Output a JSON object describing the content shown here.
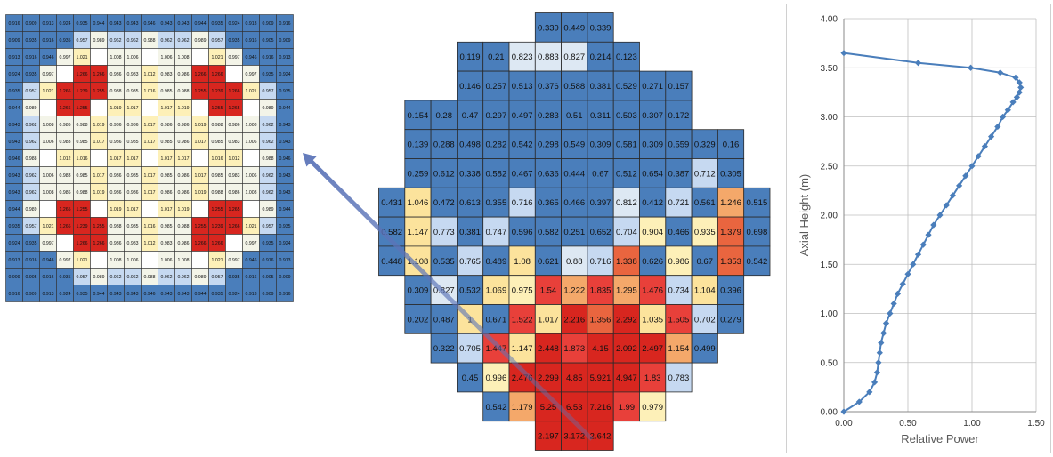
{
  "assembly_map": {
    "rows": [
      [
        "0.916",
        "0.909",
        "0.913",
        "0.924",
        "0.935",
        "0.944",
        "0.943",
        "0.943",
        "0.946",
        "0.943",
        "0.943",
        "0.944",
        "0.935",
        "0.924",
        "0.913",
        "0.909",
        "0.916"
      ],
      [
        "0.909",
        "0.935",
        "0.916",
        "0.935",
        "0.957",
        "0.989",
        "0.962",
        "0.962",
        "0.988",
        "0.962",
        "0.962",
        "0.989",
        "0.957",
        "0.935",
        "0.916",
        "0.905",
        "0.909"
      ],
      [
        "0.913",
        "0.916",
        "0.946",
        "0.997",
        "1.021",
        "",
        "1.008",
        "1.006",
        "",
        "1.006",
        "1.008",
        "",
        "1.021",
        "0.997",
        "0.946",
        "0.916",
        "0.913"
      ],
      [
        "0.924",
        "0.935",
        "0.997",
        "",
        "1.266",
        "1.266",
        "0.986",
        "0.983",
        "1.012",
        "0.983",
        "0.986",
        "1.266",
        "1.266",
        "",
        "0.997",
        "0.935",
        "0.924"
      ],
      [
        "0.935",
        "0.957",
        "1.021",
        "1.266",
        "1.239",
        "1.255",
        "0.988",
        "0.985",
        "1.016",
        "0.985",
        "0.988",
        "1.255",
        "1.239",
        "1.266",
        "1.021",
        "0.957",
        "0.935"
      ],
      [
        "0.944",
        "0.989",
        "",
        "1.266",
        "1.255",
        "",
        "1.019",
        "1.017",
        "",
        "1.017",
        "1.019",
        "",
        "1.255",
        "1.265",
        "",
        "0.989",
        "0.944"
      ],
      [
        "0.943",
        "0.962",
        "1.008",
        "0.986",
        "0.988",
        "1.019",
        "0.986",
        "0.986",
        "1.017",
        "0.986",
        "0.986",
        "1.019",
        "0.988",
        "0.986",
        "1.008",
        "0.962",
        "0.943"
      ],
      [
        "0.943",
        "0.962",
        "1.006",
        "0.983",
        "0.985",
        "1.017",
        "0.986",
        "0.985",
        "1.017",
        "0.985",
        "0.986",
        "1.017",
        "0.985",
        "0.983",
        "1.006",
        "0.962",
        "0.943"
      ],
      [
        "0.946",
        "0.988",
        "",
        "1.012",
        "1.016",
        "",
        "1.017",
        "1.017",
        "",
        "1.017",
        "1.017",
        "",
        "1.016",
        "1.012",
        "",
        "0.988",
        "0.946"
      ],
      [
        "0.943",
        "0.962",
        "1.006",
        "0.983",
        "0.985",
        "1.017",
        "0.986",
        "0.985",
        "1.017",
        "0.985",
        "0.986",
        "1.017",
        "0.985",
        "0.983",
        "1.006",
        "0.962",
        "0.943"
      ],
      [
        "0.943",
        "0.962",
        "1.008",
        "0.986",
        "0.988",
        "1.019",
        "0.986",
        "0.986",
        "1.017",
        "0.986",
        "0.986",
        "1.019",
        "0.988",
        "0.986",
        "1.008",
        "0.962",
        "0.943"
      ],
      [
        "0.944",
        "0.989",
        "",
        "1.265",
        "1.255",
        "",
        "1.019",
        "1.017",
        "",
        "1.017",
        "1.019",
        "",
        "1.255",
        "1.265",
        "",
        "0.989",
        "0.944"
      ],
      [
        "0.935",
        "0.957",
        "1.021",
        "1.266",
        "1.239",
        "1.255",
        "0.988",
        "0.985",
        "1.016",
        "0.985",
        "0.988",
        "1.255",
        "1.239",
        "1.266",
        "1.021",
        "0.957",
        "0.935"
      ],
      [
        "0.924",
        "0.935",
        "0.997",
        "",
        "1.266",
        "1.266",
        "0.986",
        "0.983",
        "1.012",
        "0.983",
        "0.986",
        "1.266",
        "1.266",
        "",
        "0.997",
        "0.935",
        "0.924"
      ],
      [
        "0.913",
        "0.916",
        "0.946",
        "0.997",
        "1.021",
        "",
        "1.008",
        "1.006",
        "",
        "1.006",
        "1.008",
        "",
        "1.021",
        "0.997",
        "0.946",
        "0.916",
        "0.913"
      ],
      [
        "0.909",
        "0.905",
        "0.916",
        "0.935",
        "0.957",
        "0.989",
        "0.962",
        "0.962",
        "0.988",
        "0.962",
        "0.962",
        "0.989",
        "0.957",
        "0.935",
        "0.916",
        "0.905",
        "0.909"
      ],
      [
        "0.916",
        "0.909",
        "0.913",
        "0.924",
        "0.935",
        "0.944",
        "0.943",
        "0.943",
        "0.946",
        "0.943",
        "0.943",
        "0.944",
        "0.935",
        "0.924",
        "0.913",
        "0.909",
        "0.916"
      ]
    ]
  },
  "core_map": {
    "rows": [
      {
        "start": 6,
        "values": [
          "0.339",
          "0.449",
          "0.339"
        ]
      },
      {
        "start": 3,
        "values": [
          "0.119",
          "0.21",
          "0.823",
          "0.883",
          "0.827",
          "0.214",
          "0.123"
        ]
      },
      {
        "start": 3,
        "values": [
          "0.146",
          "0.257",
          "0.513",
          "0.376",
          "0.588",
          "0.381",
          "0.529",
          "0.271",
          "0.157"
        ]
      },
      {
        "start": 1,
        "values": [
          "0.154",
          "0.28",
          "0.47",
          "0.297",
          "0.497",
          "0.283",
          "0.51",
          "0.311",
          "0.503",
          "0.307",
          "0.172"
        ]
      },
      {
        "start": 1,
        "values": [
          "0.139",
          "0.288",
          "0.498",
          "0.282",
          "0.542",
          "0.298",
          "0.549",
          "0.309",
          "0.581",
          "0.309",
          "0.559",
          "0.329",
          "0.16"
        ]
      },
      {
        "start": 1,
        "values": [
          "0.259",
          "0.612",
          "0.338",
          "0.582",
          "0.467",
          "0.636",
          "0.444",
          "0.67",
          "0.512",
          "0.654",
          "0.387",
          "0.712",
          "0.305"
        ]
      },
      {
        "start": 0,
        "values": [
          "0.431",
          "1.046",
          "0.472",
          "0.613",
          "0.355",
          "0.716",
          "0.365",
          "0.466",
          "0.397",
          "0.812",
          "0.412",
          "0.721",
          "0.561",
          "1.246",
          "0.515"
        ]
      },
      {
        "start": 0,
        "values": [
          "0.582",
          "1.147",
          "0.773",
          "0.381",
          "0.747",
          "0.596",
          "0.582",
          "0.251",
          "0.652",
          "0.704",
          "0.904",
          "0.466",
          "0.935",
          "1.379",
          "0.698"
        ]
      },
      {
        "start": 0,
        "values": [
          "0.448",
          "1.108",
          "0.535",
          "0.765",
          "0.489",
          "1.08",
          "0.621",
          "0.88",
          "0.716",
          "1.338",
          "0.626",
          "0.986",
          "0.67",
          "1.353",
          "0.542"
        ]
      },
      {
        "start": 1,
        "values": [
          "0.309",
          "0.827",
          "0.532",
          "1.069",
          "0.975",
          "1.54",
          "1.222",
          "1.835",
          "1.295",
          "1.476",
          "0.734",
          "1.104",
          "0.396"
        ]
      },
      {
        "start": 1,
        "values": [
          "0.202",
          "0.487",
          "1",
          "0.671",
          "1.522",
          "1.017",
          "2.216",
          "1.356",
          "2.292",
          "1.035",
          "1.505",
          "0.702",
          "0.279"
        ]
      },
      {
        "start": 2,
        "values": [
          "0.322",
          "0.705",
          "1.447",
          "1.147",
          "2.448",
          "1.873",
          "4.15",
          "2.092",
          "2.497",
          "1.154",
          "0.499"
        ]
      },
      {
        "start": 3,
        "values": [
          "0.45",
          "0.996",
          "2.476",
          "2.299",
          "4.85",
          "5.921",
          "4.947",
          "1.83",
          "0.783"
        ]
      },
      {
        "start": 4,
        "values": [
          "0.542",
          "1.179",
          "5.25",
          "6.53",
          "7.216",
          "1.99",
          "0.979"
        ]
      },
      {
        "start": 6,
        "values": [
          "2.197",
          "3.172",
          "2.642"
        ]
      }
    ]
  },
  "chart_data": {
    "type": "line",
    "xlabel": "Relative Power",
    "ylabel": "Axial Height (m)",
    "xlim": [
      0,
      1.5
    ],
    "ylim": [
      0,
      4.0
    ],
    "xticks": [
      "0.00",
      "0.50",
      "1.00",
      "1.50"
    ],
    "yticks": [
      "0.00",
      "0.50",
      "1.00",
      "1.50",
      "2.00",
      "2.50",
      "3.00",
      "3.50",
      "4.00"
    ],
    "grid": true,
    "series": [
      {
        "color": "#4a7ebb",
        "x": [
          0.0,
          0.12,
          0.2,
          0.24,
          0.26,
          0.27,
          0.28,
          0.29,
          0.31,
          0.33,
          0.36,
          0.39,
          0.42,
          0.46,
          0.5,
          0.54,
          0.58,
          0.62,
          0.66,
          0.7,
          0.75,
          0.8,
          0.85,
          0.9,
          0.95,
          1.0,
          1.05,
          1.1,
          1.15,
          1.2,
          1.24,
          1.28,
          1.32,
          1.35,
          1.37,
          1.38,
          1.37,
          1.34,
          1.22,
          0.99,
          0.58,
          0.0
        ],
        "y": [
          0.0,
          0.1,
          0.2,
          0.3,
          0.4,
          0.5,
          0.6,
          0.7,
          0.8,
          0.9,
          1.0,
          1.1,
          1.2,
          1.3,
          1.4,
          1.5,
          1.6,
          1.7,
          1.8,
          1.9,
          2.0,
          2.1,
          2.2,
          2.3,
          2.4,
          2.5,
          2.6,
          2.7,
          2.8,
          2.9,
          3.0,
          3.07,
          3.15,
          3.2,
          3.25,
          3.3,
          3.35,
          3.4,
          3.45,
          3.5,
          3.55,
          3.65
        ]
      }
    ]
  },
  "colors": {
    "low": "#4a7ebb",
    "light_blue": "#c6d9f1",
    "pale": "#dde8f3",
    "cream": "#fdf0b8",
    "yellow": "#fce39c",
    "orange": "#f4a86a",
    "red": "#e8403a",
    "deep_red": "#d8261f",
    "arrow": "#5b74b8"
  }
}
